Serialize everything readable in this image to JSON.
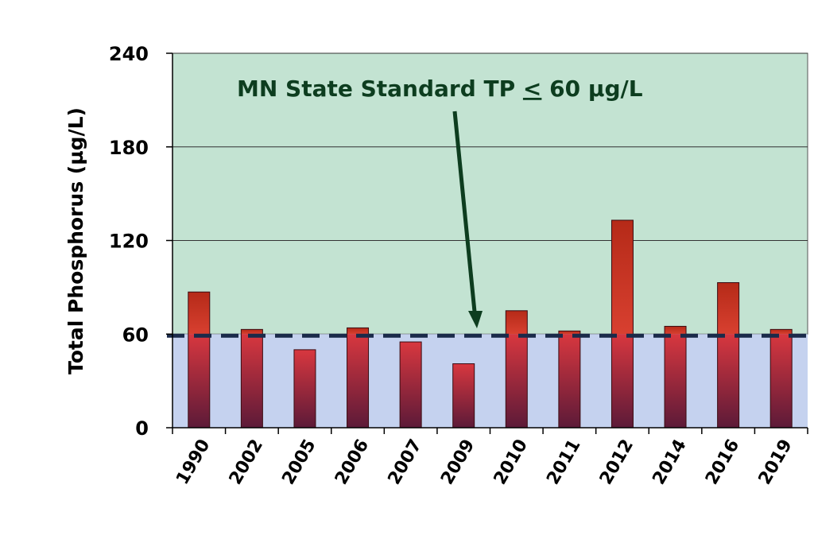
{
  "chart_data": {
    "type": "bar",
    "title": "",
    "xlabel": "",
    "ylabel": "Total Phosphorus  (µg/L)",
    "ylim": [
      0,
      240
    ],
    "yticks": [
      0,
      60,
      120,
      180,
      240
    ],
    "grid": true,
    "categories": [
      "1990",
      "2002",
      "2005",
      "2006",
      "2007",
      "2009",
      "2010",
      "2011",
      "2012",
      "2014",
      "2016",
      "2019"
    ],
    "values": [
      87,
      63,
      50,
      64,
      55,
      41,
      75,
      62,
      133,
      65,
      93,
      63
    ],
    "threshold": {
      "value": 60,
      "style": "dashed",
      "color": "#1a2a4a"
    },
    "annotation": {
      "text_main": "MN State Standard TP ",
      "symbol": "<",
      "text_tail": " 60 µg/L"
    },
    "colors": {
      "above_band": "#c3e3d2",
      "below_band": "#c5d2ef",
      "bar_top": "#d8373f",
      "bar_bottom": "#5c1a38",
      "bar_above_top": "#b52a18",
      "bar_above_bottom": "#d84030",
      "arrow": "#0d3d1f"
    }
  }
}
